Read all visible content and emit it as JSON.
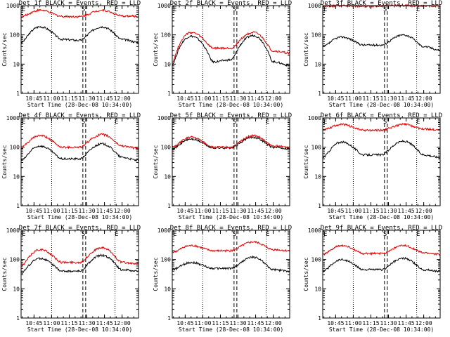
{
  "chart_data": [
    {
      "type": "line",
      "title": "Det 1f BLACK = Events, RED = LLD",
      "xlabel": "Start Time (28-Dec-08 10:34:00)",
      "ylabel": "Counts/sec",
      "yscale": "log",
      "ylim": [
        1,
        1000
      ],
      "xlim": [
        "10:34",
        "12:14"
      ],
      "x_ticks": [
        "10:45",
        "11:00",
        "11:15",
        "11:30",
        "11:45",
        "12:00"
      ],
      "y_ticks": [
        "1",
        "10",
        "100",
        "1000"
      ],
      "markers": {
        "E_left": "10:34",
        "S": "11:29",
        "E_right": "11:56"
      },
      "series": [
        {
          "name": "Events",
          "color": "#000000",
          "x": [
            "10:34",
            "10:50",
            "11:09",
            "11:24",
            "11:43",
            "12:00",
            "12:14"
          ],
          "y": [
            55,
            190,
            70,
            65,
            190,
            70,
            55
          ]
        },
        {
          "name": "LLD",
          "color": "#e00000",
          "x": [
            "10:34",
            "10:50",
            "11:09",
            "11:24",
            "11:43",
            "12:00",
            "12:14"
          ],
          "y": [
            420,
            700,
            430,
            420,
            700,
            440,
            430
          ]
        }
      ]
    },
    {
      "type": "line",
      "title": "Det 2f BLACK = Events, RED = LLD",
      "xlabel": "Start Time (28-Dec-08 10:34:00)",
      "ylabel": "Counts/sec",
      "yscale": "log",
      "ylim": [
        1,
        1000
      ],
      "xlim": [
        "10:34",
        "12:14"
      ],
      "x_ticks": [
        "10:45",
        "11:00",
        "11:15",
        "11:30",
        "11:45",
        "12:00"
      ],
      "y_ticks": [
        "1",
        "10",
        "100",
        "1000"
      ],
      "markers": {
        "E_left": "10:34",
        "S": "11:29",
        "E_right": "11:56"
      },
      "series": [
        {
          "name": "Events",
          "color": "#000000",
          "x": [
            "10:34",
            "10:50",
            "11:09",
            "11:24",
            "11:43",
            "12:00",
            "12:14"
          ],
          "y": [
            10,
            90,
            12,
            14,
            95,
            12,
            9
          ]
        },
        {
          "name": "LLD",
          "color": "#e00000",
          "x": [
            "10:34",
            "10:50",
            "11:09",
            "11:24",
            "11:43",
            "12:00",
            "12:14"
          ],
          "y": [
            12,
            120,
            35,
            35,
            120,
            28,
            24
          ]
        }
      ]
    },
    {
      "type": "line",
      "title": "Det 3f BLACK = Events, RED = LLD",
      "xlabel": "Start Time (28-Dec-08 10:34:00)",
      "ylabel": "Counts/sec",
      "yscale": "log",
      "ylim": [
        1,
        1000
      ],
      "xlim": [
        "10:34",
        "12:14"
      ],
      "x_ticks": [
        "10:45",
        "11:00",
        "11:15",
        "11:30",
        "11:45",
        "12:00"
      ],
      "y_ticks": [
        "1",
        "10",
        "100",
        "1000"
      ],
      "markers": {
        "E_left": "10:34",
        "S": "11:29",
        "E_right": "11:56"
      },
      "series": [
        {
          "name": "Events",
          "color": "#000000",
          "x": [
            "10:34",
            "10:50",
            "11:09",
            "11:24",
            "11:43",
            "12:00",
            "12:14"
          ],
          "y": [
            40,
            85,
            45,
            45,
            100,
            40,
            30
          ]
        },
        {
          "name": "LLD",
          "color": "#e00000",
          "x": [
            "10:34",
            "10:50",
            "11:09",
            "11:24",
            "11:43",
            "12:00",
            "12:14"
          ],
          "y": [
            950,
            1000,
            950,
            980,
            1000,
            980,
            960
          ]
        }
      ]
    },
    {
      "type": "line",
      "title": "Det 4f BLACK = Events, RED = LLD",
      "xlabel": "Start Time (28-Dec-08 10:34:00)",
      "ylabel": "Counts/sec",
      "yscale": "log",
      "ylim": [
        1,
        1000
      ],
      "xlim": [
        "10:34",
        "12:14"
      ],
      "x_ticks": [
        "10:45",
        "11:00",
        "11:15",
        "11:30",
        "11:45",
        "12:00"
      ],
      "y_ticks": [
        "1",
        "10",
        "100",
        "1000"
      ],
      "markers": {
        "E_left": "10:34",
        "S": "11:29",
        "E_right": "11:56"
      },
      "series": [
        {
          "name": "Events",
          "color": "#000000",
          "x": [
            "10:34",
            "10:50",
            "11:09",
            "11:24",
            "11:43",
            "12:00",
            "12:14"
          ],
          "y": [
            35,
            110,
            40,
            40,
            130,
            45,
            35
          ]
        },
        {
          "name": "LLD",
          "color": "#e00000",
          "x": [
            "10:34",
            "10:50",
            "11:09",
            "11:24",
            "11:43",
            "12:00",
            "12:14"
          ],
          "y": [
            100,
            250,
            100,
            100,
            270,
            110,
            90
          ]
        }
      ]
    },
    {
      "type": "line",
      "title": "Det 5f BLACK = Events, RED = LLD",
      "xlabel": "Start Time (28-Dec-08 10:34:00)",
      "ylabel": "Counts/sec",
      "yscale": "log",
      "ylim": [
        1,
        1000
      ],
      "xlim": [
        "10:34",
        "12:14"
      ],
      "x_ticks": [
        "10:45",
        "11:00",
        "11:15",
        "11:30",
        "11:45",
        "12:00"
      ],
      "y_ticks": [
        "1",
        "10",
        "100",
        "1000"
      ],
      "markers": {
        "E_left": "10:34",
        "S": "11:29",
        "E_right": "11:56"
      },
      "series": [
        {
          "name": "Events",
          "color": "#000000",
          "x": [
            "10:34",
            "10:50",
            "11:09",
            "11:24",
            "11:43",
            "12:00",
            "12:14"
          ],
          "y": [
            90,
            190,
            95,
            95,
            220,
            100,
            90
          ]
        },
        {
          "name": "LLD",
          "color": "#e00000",
          "x": [
            "10:34",
            "10:50",
            "11:09",
            "11:24",
            "11:43",
            "12:00",
            "12:14"
          ],
          "y": [
            100,
            220,
            100,
            100,
            250,
            110,
            100
          ]
        }
      ]
    },
    {
      "type": "line",
      "title": "Det 6f BLACK = Events, RED = LLD",
      "xlabel": "Start Time (28-Dec-08 10:34:00)",
      "ylabel": "Counts/sec",
      "yscale": "log",
      "ylim": [
        1,
        1000
      ],
      "xlim": [
        "10:34",
        "12:14"
      ],
      "x_ticks": [
        "10:45",
        "11:00",
        "11:15",
        "11:30",
        "11:45",
        "12:00"
      ],
      "y_ticks": [
        "1",
        "10",
        "100",
        "1000"
      ],
      "markers": {
        "E_left": "10:34",
        "S": "11:29",
        "E_right": "11:56"
      },
      "series": [
        {
          "name": "Events",
          "color": "#000000",
          "x": [
            "10:34",
            "10:50",
            "11:09",
            "11:24",
            "11:43",
            "12:00",
            "12:14"
          ],
          "y": [
            45,
            150,
            55,
            55,
            160,
            55,
            45
          ]
        },
        {
          "name": "LLD",
          "color": "#e00000",
          "x": [
            "10:34",
            "10:50",
            "11:09",
            "11:24",
            "11:43",
            "12:00",
            "12:14"
          ],
          "y": [
            400,
            600,
            380,
            380,
            600,
            420,
            400
          ]
        }
      ]
    },
    {
      "type": "line",
      "title": "Det 7f BLACK = Events, RED = LLD",
      "xlabel": "Start Time (28-Dec-08 10:34:00)",
      "ylabel": "Counts/sec",
      "yscale": "log",
      "ylim": [
        1,
        1000
      ],
      "xlim": [
        "10:34",
        "12:14"
      ],
      "x_ticks": [
        "10:45",
        "11:00",
        "11:15",
        "11:30",
        "11:45",
        "12:00"
      ],
      "y_ticks": [
        "1",
        "10",
        "100",
        "1000"
      ],
      "markers": {
        "E_left": "10:34",
        "S": "11:29",
        "E_right": "11:56"
      },
      "series": [
        {
          "name": "Events",
          "color": "#000000",
          "x": [
            "10:34",
            "10:50",
            "11:09",
            "11:24",
            "11:43",
            "12:00",
            "12:14"
          ],
          "y": [
            35,
            110,
            40,
            40,
            140,
            45,
            40
          ]
        },
        {
          "name": "LLD",
          "color": "#e00000",
          "x": [
            "10:34",
            "10:50",
            "11:09",
            "11:24",
            "11:43",
            "12:00",
            "12:14"
          ],
          "y": [
            60,
            220,
            80,
            80,
            250,
            80,
            70
          ]
        }
      ]
    },
    {
      "type": "line",
      "title": "Det 8f BLACK = Events, RED = LLD",
      "xlabel": "Start Time (28-Dec-08 10:34:00)",
      "ylabel": "Counts/sec",
      "yscale": "log",
      "ylim": [
        1,
        1000
      ],
      "xlim": [
        "10:34",
        "12:14"
      ],
      "x_ticks": [
        "10:45",
        "11:00",
        "11:15",
        "11:30",
        "11:45",
        "12:00"
      ],
      "y_ticks": [
        "1",
        "10",
        "100",
        "1000"
      ],
      "markers": {
        "E_left": "10:34",
        "S": "11:29",
        "E_right": "11:56"
      },
      "series": [
        {
          "name": "Events",
          "color": "#000000",
          "x": [
            "10:34",
            "10:50",
            "11:09",
            "11:24",
            "11:43",
            "12:00",
            "12:14"
          ],
          "y": [
            45,
            80,
            50,
            50,
            120,
            45,
            40
          ]
        },
        {
          "name": "LLD",
          "color": "#e00000",
          "x": [
            "10:34",
            "10:50",
            "11:09",
            "11:24",
            "11:43",
            "12:00",
            "12:14"
          ],
          "y": [
            180,
            300,
            200,
            200,
            400,
            220,
            200
          ]
        }
      ]
    },
    {
      "type": "line",
      "title": "Det 9f BLACK = Events, RED = LLD",
      "xlabel": "Start Time (28-Dec-08 10:34:00)",
      "ylabel": "Counts/sec",
      "yscale": "log",
      "ylim": [
        1,
        1000
      ],
      "xlim": [
        "10:34",
        "12:14"
      ],
      "x_ticks": [
        "10:45",
        "11:00",
        "11:15",
        "11:30",
        "11:45",
        "12:00"
      ],
      "y_ticks": [
        "1",
        "10",
        "100",
        "1000"
      ],
      "markers": {
        "E_left": "10:34",
        "S": "11:29",
        "E_right": "11:56"
      },
      "series": [
        {
          "name": "Events",
          "color": "#000000",
          "x": [
            "10:34",
            "10:50",
            "11:09",
            "11:24",
            "11:43",
            "12:00",
            "12:14"
          ],
          "y": [
            40,
            100,
            45,
            45,
            110,
            45,
            40
          ]
        },
        {
          "name": "LLD",
          "color": "#e00000",
          "x": [
            "10:34",
            "10:50",
            "11:09",
            "11:24",
            "11:43",
            "12:00",
            "12:14"
          ],
          "y": [
            150,
            300,
            160,
            160,
            300,
            170,
            150
          ]
        }
      ]
    }
  ]
}
